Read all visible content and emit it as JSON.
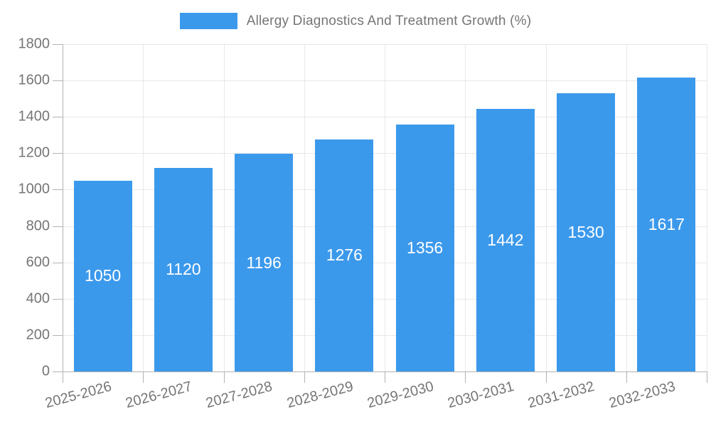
{
  "chart_data": {
    "type": "bar",
    "title": "Allergy Diagnostics And Treatment Growth (%)",
    "categories": [
      "2025-2026",
      "2026-2027",
      "2027-2028",
      "2028-2029",
      "2029-2030",
      "2030-2031",
      "2031-2032",
      "2032-2033"
    ],
    "values": [
      1050,
      1120,
      1196,
      1276,
      1356,
      1442,
      1530,
      1617
    ],
    "series_name": "Allergy Diagnostics And Treatment Growth (%)",
    "xlabel": "",
    "ylabel": "",
    "ylim": [
      0,
      1800
    ],
    "ytick_step": 200,
    "ytick_labels": [
      "0",
      "200",
      "400",
      "600",
      "800",
      "1000",
      "1200",
      "1400",
      "1600",
      "1800"
    ],
    "grid": true,
    "bar_value_labels_visible": true,
    "legend_position": "top-center",
    "colors": {
      "bar": "#3B99EC",
      "bar_value_text": "#FFFFFF",
      "tick_label_text": "#757575",
      "legend_text": "#757575",
      "gridline": "#E8E8E8",
      "axis_line": "#B3B3B3",
      "background": "#FFFFFF"
    }
  }
}
